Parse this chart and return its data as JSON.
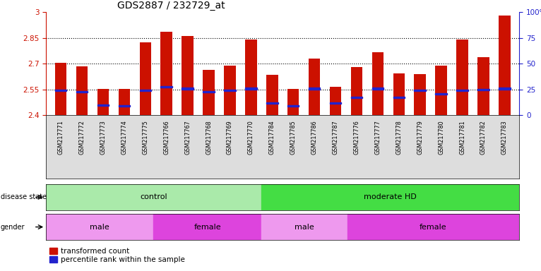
{
  "title": "GDS2887 / 232729_at",
  "samples": [
    "GSM217771",
    "GSM217772",
    "GSM217773",
    "GSM217774",
    "GSM217775",
    "GSM217766",
    "GSM217767",
    "GSM217768",
    "GSM217769",
    "GSM217770",
    "GSM217784",
    "GSM217785",
    "GSM217786",
    "GSM217787",
    "GSM217776",
    "GSM217777",
    "GSM217778",
    "GSM217779",
    "GSM217780",
    "GSM217781",
    "GSM217782",
    "GSM217783"
  ],
  "bar_values": [
    2.705,
    2.685,
    2.555,
    2.555,
    2.825,
    2.885,
    2.86,
    2.665,
    2.69,
    2.84,
    2.635,
    2.555,
    2.73,
    2.565,
    2.68,
    2.765,
    2.645,
    2.64,
    2.69,
    2.84,
    2.74,
    2.98
  ],
  "bar_base": 2.4,
  "blue_marker_values": [
    2.545,
    2.535,
    2.46,
    2.455,
    2.545,
    2.565,
    2.555,
    2.535,
    2.545,
    2.555,
    2.47,
    2.455,
    2.555,
    2.47,
    2.505,
    2.555,
    2.505,
    2.545,
    2.525,
    2.545,
    2.55,
    2.555
  ],
  "ylim": [
    2.4,
    3.0
  ],
  "yticks_left": [
    2.4,
    2.55,
    2.7,
    2.85,
    3.0
  ],
  "yticks_right": [
    0,
    25,
    50,
    75,
    100
  ],
  "ytick_labels_left": [
    "2.4",
    "2.55",
    "2.7",
    "2.85",
    "3"
  ],
  "ytick_labels_right": [
    "0",
    "25",
    "50",
    "75",
    "100%"
  ],
  "hlines": [
    2.55,
    2.7,
    2.85
  ],
  "bar_color": "#cc1100",
  "blue_color": "#2222cc",
  "bar_width": 0.55,
  "disease_state_groups": [
    {
      "label": "control",
      "start": 0,
      "end": 9,
      "color": "#aaeaaa"
    },
    {
      "label": "moderate HD",
      "start": 10,
      "end": 21,
      "color": "#44dd44"
    }
  ],
  "gender_groups": [
    {
      "label": "male",
      "start": 0,
      "end": 4,
      "color": "#ee99ee"
    },
    {
      "label": "female",
      "start": 5,
      "end": 9,
      "color": "#dd44dd"
    },
    {
      "label": "male",
      "start": 10,
      "end": 13,
      "color": "#ee99ee"
    },
    {
      "label": "female",
      "start": 14,
      "end": 21,
      "color": "#dd44dd"
    }
  ],
  "left_axis_color": "#cc1100",
  "right_axis_color": "#2222cc",
  "bg_color": "#ffffff",
  "tick_fontsize": 7.5,
  "title_fontsize": 10,
  "sample_bg": "#dddddd"
}
